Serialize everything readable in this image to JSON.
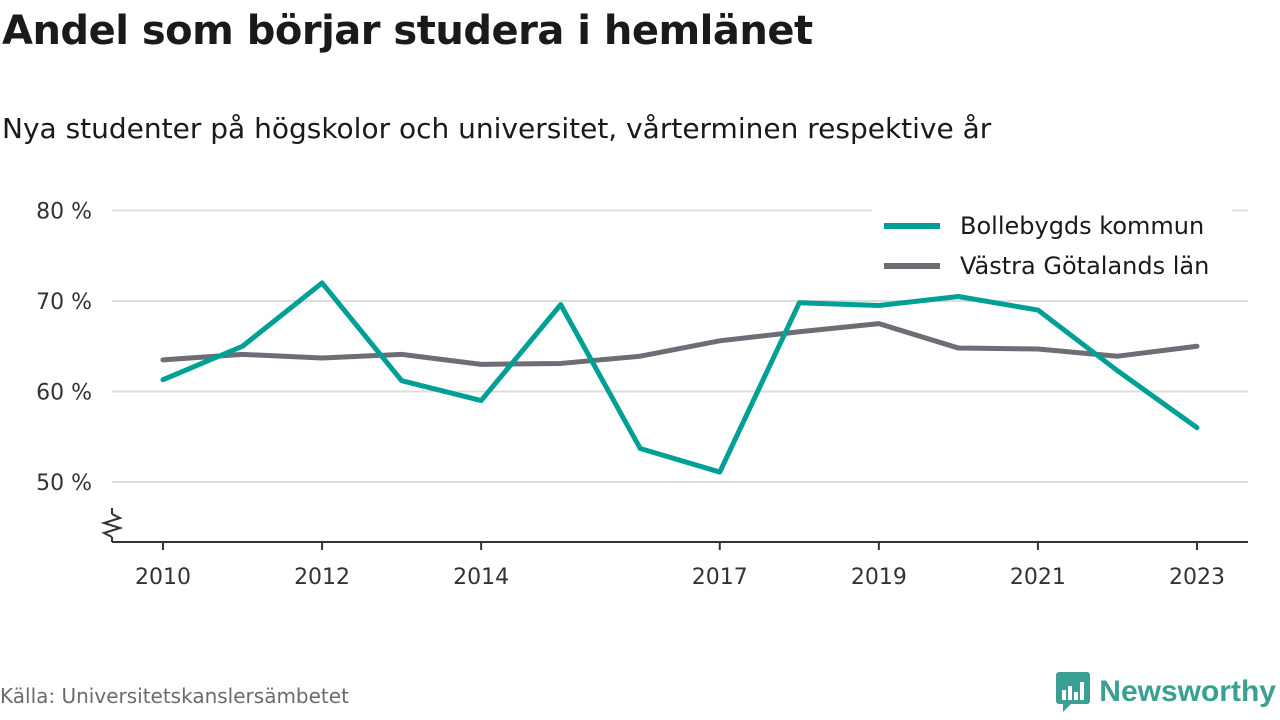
{
  "header": {
    "title": "Andel som börjar studera i hemlänet",
    "subtitle": "Nya studenter på högskolor och universitet, vårterminen respektive år"
  },
  "footer": {
    "source": "Källa: Universitetskanslersämbetet",
    "brand": "Newsworthy"
  },
  "colors": {
    "series_1": "#00a096",
    "series_2": "#6e6d75",
    "grid": "#dcdcdc",
    "axis": "#333333",
    "brand": "#3aa093"
  },
  "chart_data": {
    "type": "line",
    "title": "Andel som börjar studera i hemlänet",
    "subtitle": "Nya studenter på högskolor och universitet, vårterminen respektive år",
    "x": [
      2010,
      2011,
      2012,
      2013,
      2014,
      2015,
      2016,
      2017,
      2018,
      2019,
      2020,
      2021,
      2022,
      2023
    ],
    "x_tick_labels": [
      "2010",
      "2012",
      "2014",
      "2017",
      "2019",
      "2021",
      "2023"
    ],
    "y_tick_labels": [
      "80 %",
      "70 %",
      "60 %",
      "50 %"
    ],
    "y_ticks": [
      80,
      70,
      60,
      50
    ],
    "ylim": [
      43,
      80
    ],
    "y_axis_broken": true,
    "grid": true,
    "legend_position": "top-right",
    "series": [
      {
        "name": "Bollebygds kommun",
        "color": "#00a096",
        "values": [
          61.3,
          65.0,
          72.0,
          61.2,
          59.0,
          69.6,
          53.7,
          51.1,
          69.8,
          69.5,
          70.5,
          69.0,
          62.3,
          56.0
        ]
      },
      {
        "name": "Västra Götalands län",
        "color": "#6e6d75",
        "values": [
          63.5,
          64.1,
          63.7,
          64.1,
          63.0,
          63.1,
          63.9,
          65.6,
          66.6,
          67.5,
          64.8,
          64.7,
          63.9,
          65.0
        ]
      }
    ]
  }
}
